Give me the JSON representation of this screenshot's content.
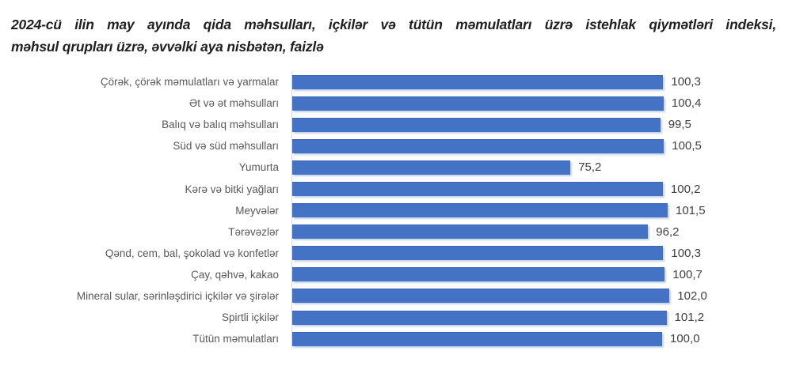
{
  "title": {
    "line1": "2024-cü  ilin may ayında qida məhsulları, içkilər və tütün məmulatları üzrə istehlak qiymətləri indeksi,",
    "line2": "məhsul qrupları üzrə, əvvəlki aya nisbətən, faizlə"
  },
  "chart_data": {
    "type": "bar",
    "orientation": "horizontal",
    "title": "2024-cü ilin may ayında qida məhsulları, içkilər və tütün məmulatları üzrə istehlak qiymətləri indeksi, məhsul qrupları üzrə, əvvəlki aya nisbətən, faizlə",
    "categories": [
      "Çörək, çörək məmulatları  və yarmalar",
      "Ət və ət məhsulları",
      "Balıq və balıq məhsulları",
      "Süd və süd məhsulları",
      "Yumurta",
      "Kərə və bitki yağları",
      "Meyvələr",
      "Tərəvəzlər",
      "Qənd, cem, bal, şokolad və konfetlər",
      "Çay, qəhvə, kakao",
      "Mineral sular, sərinləşdirici içkilər və şirələr",
      "Spirtli içkilər",
      "Tütün məmulatları"
    ],
    "values": [
      100.3,
      100.4,
      99.5,
      100.5,
      75.2,
      100.2,
      101.5,
      96.2,
      100.3,
      100.7,
      102.0,
      101.2,
      100.0
    ],
    "value_labels": [
      "100,3",
      "100,4",
      "99,5",
      "100,5",
      "75,2",
      "100,2",
      "101,5",
      "96,2",
      "100,3",
      "100,7",
      "102,0",
      "101,2",
      "100,0"
    ],
    "xlabel": "",
    "ylabel": "",
    "xlim": [
      0,
      135
    ],
    "grid": false,
    "legend": false,
    "bar_color": "#4472C4",
    "category_label_color": "#595959",
    "value_label_color": "#404040",
    "axis_line_color": "#d6d6d6",
    "value_labels_position": "end-of-bar",
    "decimal_separator": ","
  }
}
